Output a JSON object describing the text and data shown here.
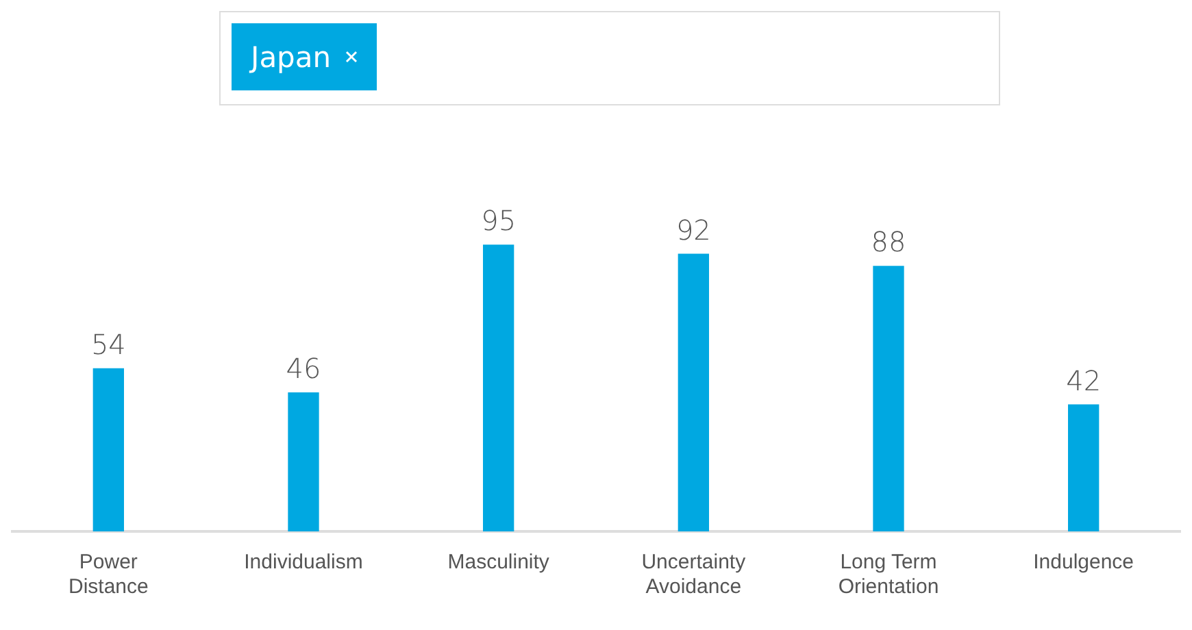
{
  "chart_data": {
    "type": "bar",
    "categories": [
      "Power Distance",
      "Individualism",
      "Masculinity",
      "Uncertainty Avoidance",
      "Long Term Orientation",
      "Indulgence"
    ],
    "series": [
      {
        "name": "Japan",
        "color": "#00a8e1",
        "values": [
          54,
          46,
          95,
          92,
          88,
          42
        ]
      }
    ],
    "data_labels": true,
    "legend": "top",
    "grid": false
  }
}
